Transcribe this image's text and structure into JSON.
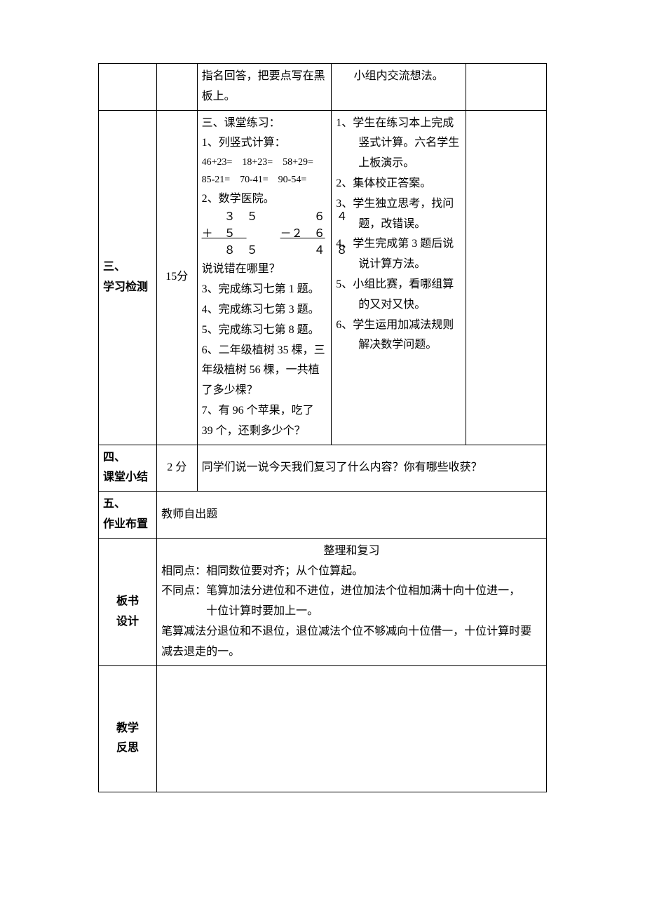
{
  "rows": {
    "r1": {
      "col3": "指名回答，把要点写在黑板上。",
      "col4": "小组内交流想法。"
    },
    "r2": {
      "label1": "三、",
      "label2": "学习检测",
      "time": "15分",
      "left": {
        "title": "三、课堂练习：",
        "p1": "1、列竖式计算：",
        "p1a": "46+23=　18+23=　58+29=",
        "p1b": "85-21=　70-41=　90-54=",
        "p2": "2、数学医院。",
        "m1": "　　３　５　　　　　６　４",
        "m2a": "＋　５　",
        "m2b": "　　　",
        "m2c": "－２　６",
        "m3": "　　８　５　　　　　４　８",
        "p2q": "说说错在哪里？",
        "p3": "3、完成练习七第 1 题。",
        "p4": "4、完成练习七第 3 题。",
        "p5": "5、完成练习七第 8 题。",
        "p6": "6、二年级植树 35 棵，三年级植树 56 棵，一共植了多少棵？",
        "p7": "7、有 96 个苹果，吃了 39 个，还剩多少个？"
      },
      "right": {
        "p1": "1、学生在练习本上完成竖式计算。六名学生上板演示。",
        "p2": "2、集体校正答案。",
        "p3": "3、学生独立思考，找问题，改错误。",
        "p4": "4、学生完成第 3 题后说说计算方法。",
        "p5": "5、小组比赛，看哪组算的又对又快。",
        "p6": "6、学生运用加减法规则解决数学问题。"
      }
    },
    "r3": {
      "label1": "四、",
      "label2": "课堂小结",
      "time": "2 分",
      "content": "同学们说一说今天我们复习了什么内容？你有哪些收获？"
    },
    "r4": {
      "label1": "五、",
      "label2": "作业布置",
      "content": "教师自出题"
    },
    "r5": {
      "label": "板书\n设计",
      "title": "整理和复习",
      "line1": "相同点：相同数位要对齐；从个位算起。",
      "line2": "不同点：笔算加法分进位和不进位，进位加法个位相加满十向十位进一，",
      "line2b": "　　　　十位计算时要加上一。",
      "line3": "笔算减法分退位和不退位，退位减法个位不够减向十位借一，十位计算时要减去退走的一。"
    },
    "r6": {
      "label": "教学\n反思"
    }
  }
}
